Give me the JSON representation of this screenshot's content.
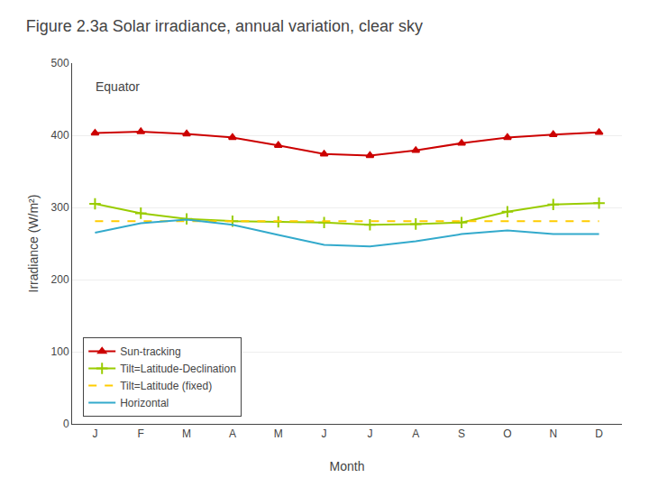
{
  "chart_data": {
    "type": "line",
    "title": "Figure 2.3a Solar irradiance, annual variation, clear sky",
    "xlabel": "Month",
    "ylabel": "Irradiance (W/m²)",
    "annotations": [
      "Equator"
    ],
    "categories": [
      "J",
      "F",
      "M",
      "A",
      "M",
      "J",
      "J",
      "A",
      "S",
      "O",
      "N",
      "D"
    ],
    "series": [
      {
        "name": "Sun-tracking",
        "color": "#CC0000",
        "marker": "triangle",
        "line_style": "solid",
        "values": [
          403,
          405,
          402,
          397,
          386,
          374,
          372,
          379,
          389,
          397,
          401,
          404
        ]
      },
      {
        "name": "Tilt=Latitude-Declination",
        "color": "#99CC00",
        "marker": "plus",
        "line_style": "solid",
        "values": [
          305,
          292,
          284,
          281,
          280,
          279,
          276,
          277,
          279,
          294,
          304,
          306
        ]
      },
      {
        "name": "Tilt=Latitude (fixed)",
        "color": "#FFCC00",
        "line_style": "dashed",
        "values": [
          281,
          281,
          281,
          281,
          281,
          281,
          281,
          281,
          281,
          281,
          281,
          281
        ]
      },
      {
        "name": "Horizontal",
        "color": "#33AACC",
        "line_style": "solid",
        "values": [
          265,
          278,
          283,
          276,
          262,
          248,
          246,
          253,
          263,
          268,
          263,
          263
        ]
      }
    ],
    "ylim": [
      0,
      500
    ],
    "yticks": [
      0,
      100,
      200,
      300,
      400,
      500
    ],
    "grid": true,
    "legend": "lower left"
  }
}
